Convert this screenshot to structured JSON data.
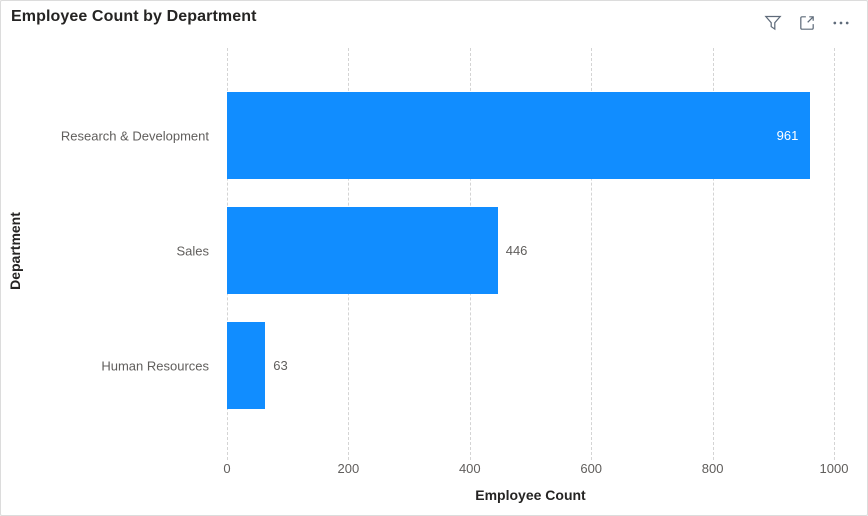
{
  "visual": {
    "title": "Employee Count by Department",
    "header_icons": [
      {
        "name": "filter-icon",
        "label": "Filters"
      },
      {
        "name": "focus-mode-icon",
        "label": "Focus mode"
      },
      {
        "name": "more-options-icon",
        "label": "More options"
      }
    ]
  },
  "chart_data": {
    "type": "bar",
    "orientation": "horizontal",
    "title": "Employee Count by Department",
    "categories": [
      "Research & Development",
      "Sales",
      "Human Resources"
    ],
    "values": [
      961,
      446,
      63
    ],
    "data_labels": [
      "961",
      "446",
      "63"
    ],
    "xlabel": "Employee Count",
    "ylabel": "Department",
    "xlim": [
      0,
      1000
    ],
    "x_ticks": [
      0,
      200,
      400,
      600,
      800,
      1000
    ],
    "x_tick_labels": [
      "0",
      "200",
      "400",
      "600",
      "800",
      "1000"
    ],
    "grid": "dashed-vertical",
    "legend": "none"
  },
  "colors": {
    "bar": "#118DFF",
    "title_ink": "#252423",
    "axis_ink": "#252423",
    "tick_ink": "#605E5C",
    "cat_ink": "#605E5C",
    "gridline": "#d4d4d4",
    "icon": "#5f6b7a",
    "border": "#dcdcdc",
    "label_inside": "#ffffff",
    "label_outside": "#605E5C"
  }
}
